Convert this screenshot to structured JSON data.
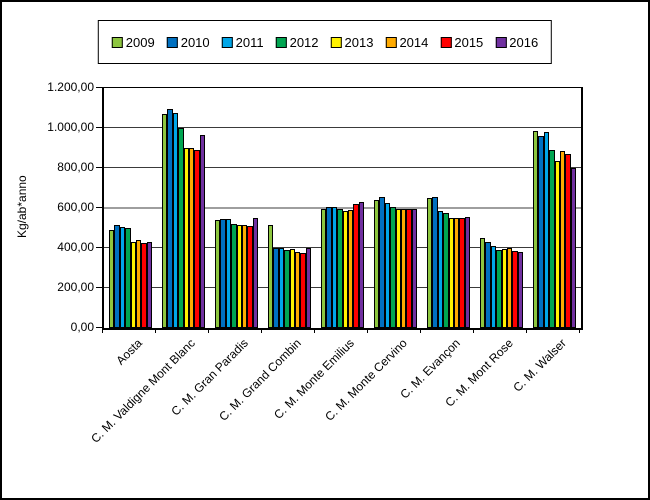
{
  "window": {
    "background": "#ffffff",
    "border_color": "#000000"
  },
  "chart_data": {
    "type": "bar",
    "title": "",
    "ylabel": "Kg/ab*anno",
    "xlabel": "",
    "ylim": [
      0,
      1200
    ],
    "ytick_step": 200,
    "ytick_labels": [
      "0,00",
      "200,00",
      "400,00",
      "600,00",
      "800,00",
      "1.000,00",
      "1.200,00"
    ],
    "grid": "horizontal",
    "legend_position": "top",
    "reference_line": {
      "value": 600,
      "color": "#9e9e9e"
    },
    "gridline_color": "#3a3a3a",
    "bar_outline_color": "#000000",
    "categories": [
      "Aosta",
      "C. M. Valdigne Mont Blanc",
      "C. M. Gran Paradis",
      "C. M. Grand Combin",
      "C. M. Monte Emilius",
      "C. M. Monte Cervino",
      "C. M. Evançon",
      "C. M. Mont Rose",
      "C. M. Walser"
    ],
    "series": [
      {
        "name": "2009",
        "color": "#8DC63F",
        "values": [
          488,
          1070,
          540,
          515,
          597,
          638,
          648,
          448,
          985
        ]
      },
      {
        "name": "2010",
        "color": "#0070C0",
        "values": [
          514,
          1095,
          547,
          398,
          607,
          653,
          657,
          428,
          960
        ]
      },
      {
        "name": "2011",
        "color": "#00A6E8",
        "values": [
          503,
          1075,
          543,
          402,
          603,
          625,
          585,
          408,
          980
        ]
      },
      {
        "name": "2012",
        "color": "#00A551",
        "values": [
          499,
          1000,
          522,
          390,
          595,
          605,
          575,
          392,
          890
        ]
      },
      {
        "name": "2013",
        "color": "#FFF200",
        "values": [
          430,
          900,
          517,
          397,
          583,
          595,
          548,
          394,
          835
        ]
      },
      {
        "name": "2014",
        "color": "#FFAA00",
        "values": [
          441,
          900,
          513,
          382,
          588,
          595,
          552,
          398,
          885
        ]
      },
      {
        "name": "2015",
        "color": "#FF0000",
        "values": [
          427,
          890,
          511,
          377,
          618,
          595,
          552,
          386,
          868
        ]
      },
      {
        "name": "2016",
        "color": "#7030A0",
        "values": [
          432,
          965,
          550,
          398,
          630,
          595,
          557,
          382,
          800
        ]
      }
    ]
  }
}
